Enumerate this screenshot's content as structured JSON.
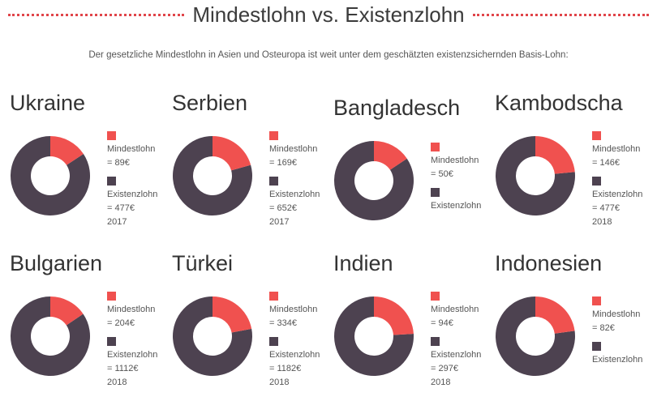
{
  "header": {
    "title": "Mindestlohn vs. Existenzlohn"
  },
  "subtitle": "Der gesetzliche Mindestlohn in Asien und Osteuropa ist weit unter dem geschätzten existenzsichernden Basis-Lohn:",
  "colors": {
    "min": "#f0514f",
    "ex": "#4d4250",
    "dots": "#e0454a"
  },
  "chart_data": [
    {
      "type": "pie",
      "country": "Ukraine",
      "min_value": 89,
      "ex_value": 477,
      "min_lines": [
        "Mindestlohn",
        "= 89€"
      ],
      "ex_lines": [
        "Existenzlohn",
        "= 477€",
        "2017"
      ]
    },
    {
      "type": "pie",
      "country": "Serbien",
      "min_value": 169,
      "ex_value": 652,
      "min_lines": [
        "Mindestlohn",
        "= 169€"
      ],
      "ex_lines": [
        "Existenzlohn",
        "= 652€",
        "2017"
      ]
    },
    {
      "type": "pie",
      "country": "Bangladesch",
      "min_value": 50,
      "ex_value": 270,
      "min_lines": [
        "Mindestlohn",
        "= 50€"
      ],
      "ex_lines": [
        "Existenzlohn"
      ]
    },
    {
      "type": "pie",
      "country": "Kambodscha",
      "min_value": 146,
      "ex_value": 477,
      "min_lines": [
        "Mindestlohn",
        "= 146€"
      ],
      "ex_lines": [
        "Existenzlohn",
        "= 477€",
        "2018"
      ]
    },
    {
      "type": "pie",
      "country": "Bulgarien",
      "min_value": 204,
      "ex_value": 1112,
      "min_lines": [
        "Mindestlohn",
        "= 204€"
      ],
      "ex_lines": [
        "Existenzlohn",
        "= 1112€",
        "2018"
      ]
    },
    {
      "type": "pie",
      "country": "Türkei",
      "min_value": 334,
      "ex_value": 1182,
      "min_lines": [
        "Mindestlohn",
        "= 334€"
      ],
      "ex_lines": [
        "Existenzlohn",
        "= 1182€",
        "2018"
      ]
    },
    {
      "type": "pie",
      "country": "Indien",
      "min_value": 94,
      "ex_value": 297,
      "min_lines": [
        "Mindestlohn",
        "= 94€"
      ],
      "ex_lines": [
        "Existenzlohn",
        "= 297€",
        "2018"
      ]
    },
    {
      "type": "pie",
      "country": "Indonesien",
      "min_value": 82,
      "ex_value": 277,
      "min_lines": [
        "Mindestlohn",
        "= 82€"
      ],
      "ex_lines": [
        "Existenzlohn"
      ]
    }
  ]
}
